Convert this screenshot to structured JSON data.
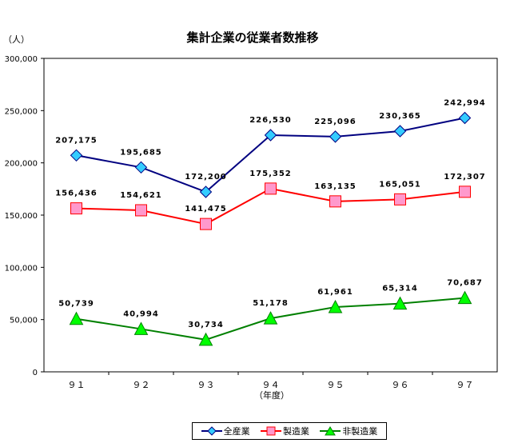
{
  "chart_data": {
    "type": "line",
    "title": "集計企業の従業者数推移",
    "y_unit": "（人）",
    "xlabel": "（年度）",
    "ylabel": "",
    "categories": [
      "９１",
      "９２",
      "９３",
      "９４",
      "９５",
      "９６",
      "９７"
    ],
    "ylim": [
      0,
      300000
    ],
    "yticks": [
      0,
      50000,
      100000,
      150000,
      200000,
      250000,
      300000
    ],
    "ytick_labels": [
      "0",
      "50,000",
      "100,000",
      "150,000",
      "200,000",
      "250,000",
      "300,000"
    ],
    "grid": false,
    "legend": "bottom",
    "series": [
      {
        "name": "全産業",
        "values": [
          207175,
          195685,
          172200,
          226530,
          225096,
          230365,
          242994
        ],
        "labels": [
          "207,175",
          "195,685",
          "172,200",
          "226,530",
          "225,096",
          "230,365",
          "242,994"
        ],
        "color": "#000080",
        "marker": "diamond",
        "marker_color": "#33ccff"
      },
      {
        "name": "製造業",
        "values": [
          156436,
          154621,
          141475,
          175352,
          163135,
          165051,
          172307
        ],
        "labels": [
          "156,436",
          "154,621",
          "141,475",
          "175,352",
          "163,135",
          "165,051",
          "172,307"
        ],
        "color": "#ff0000",
        "marker": "square",
        "marker_color": "#ff99cc"
      },
      {
        "name": "非製造業",
        "values": [
          50739,
          40994,
          30734,
          51178,
          61961,
          65314,
          70687
        ],
        "labels": [
          "50,739",
          "40,994",
          "30,734",
          "51,178",
          "61,961",
          "65,314",
          "70,687"
        ],
        "color": "#008000",
        "marker": "triangle",
        "marker_color": "#00ff00"
      }
    ]
  }
}
